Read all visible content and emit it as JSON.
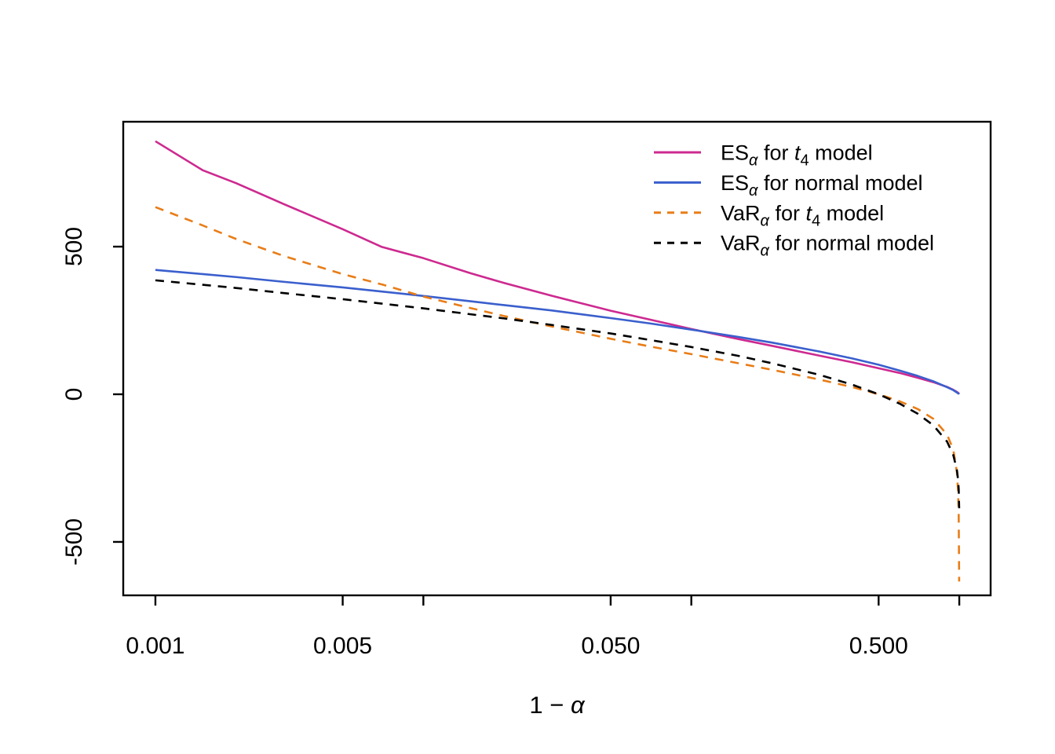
{
  "figure": {
    "background": "#ffffff"
  },
  "chart_data": {
    "type": "line",
    "title": "",
    "xlabel": "1 − α",
    "xlabel_parts": {
      "prefix": "1 − ",
      "alpha": "α"
    },
    "x_axis": {
      "scale": "log10",
      "log10_range": [
        -3.12,
        0.117
      ],
      "ticks": [
        {
          "value": 0.001,
          "label": "0.001"
        },
        {
          "value": 0.005,
          "label": "0.005"
        },
        {
          "value": 0.01,
          "label": ""
        },
        {
          "value": 0.05,
          "label": "0.050"
        },
        {
          "value": 0.1,
          "label": ""
        },
        {
          "value": 0.5,
          "label": "0.500"
        },
        {
          "value": 1.0,
          "label": ""
        }
      ]
    },
    "y_axis": {
      "range": [
        -681,
        923
      ],
      "ticks": [
        {
          "value": 500,
          "label": "500"
        },
        {
          "value": 0,
          "label": "0"
        },
        {
          "value": -500,
          "label": "-500"
        }
      ]
    },
    "legend_position": "topright",
    "series": [
      {
        "name": "ES-t4",
        "legend": "ES_α for t_4 model",
        "measure": "ES",
        "sub": "α",
        "mid": " for ",
        "model": "t",
        "model_sub": "4",
        "tail": " model",
        "color": "#CD2990",
        "dashed": false,
        "points": [
          [
            0.001,
            857
          ],
          [
            0.0015,
            759
          ],
          [
            0.002,
            715
          ],
          [
            0.003,
            645
          ],
          [
            0.005,
            559
          ],
          [
            0.007,
            499
          ],
          [
            0.01,
            461
          ],
          [
            0.015,
            410
          ],
          [
            0.02,
            377
          ],
          [
            0.03,
            334
          ],
          [
            0.05,
            283
          ],
          [
            0.07,
            253
          ],
          [
            0.1,
            221
          ],
          [
            0.15,
            187
          ],
          [
            0.2,
            164
          ],
          [
            0.3,
            131
          ],
          [
            0.4,
            108
          ],
          [
            0.5,
            88
          ],
          [
            0.6,
            72
          ],
          [
            0.7,
            56
          ],
          [
            0.8,
            41
          ],
          [
            0.9,
            25
          ],
          [
            0.95,
            15
          ],
          [
            0.98,
            8
          ],
          [
            0.99,
            5
          ],
          [
            0.995,
            3
          ],
          [
            0.999,
            1
          ]
        ]
      },
      {
        "name": "ES-normal",
        "legend": "ES_α for normal model",
        "measure": "ES",
        "sub": "α",
        "mid": " for ",
        "model": "normal",
        "model_sub": "",
        "tail": " model",
        "color": "#3A5FCD",
        "dashed": false,
        "points": [
          [
            0.001,
            421
          ],
          [
            0.0015,
            407
          ],
          [
            0.002,
            397
          ],
          [
            0.003,
            381
          ],
          [
            0.005,
            362
          ],
          [
            0.007,
            348
          ],
          [
            0.01,
            333
          ],
          [
            0.015,
            315
          ],
          [
            0.02,
            302
          ],
          [
            0.03,
            284
          ],
          [
            0.05,
            258
          ],
          [
            0.07,
            240
          ],
          [
            0.1,
            219
          ],
          [
            0.15,
            194
          ],
          [
            0.2,
            175
          ],
          [
            0.3,
            145
          ],
          [
            0.4,
            121
          ],
          [
            0.5,
            100
          ],
          [
            0.6,
            80
          ],
          [
            0.7,
            62
          ],
          [
            0.8,
            44
          ],
          [
            0.9,
            24
          ],
          [
            0.95,
            14
          ],
          [
            0.98,
            6
          ],
          [
            0.99,
            3
          ],
          [
            0.995,
            2
          ],
          [
            0.999,
            0
          ]
        ]
      },
      {
        "name": "VaR-t4",
        "legend": "VaR_α for t_4 model",
        "measure": "VaR",
        "sub": "α",
        "mid": " for ",
        "model": "t",
        "model_sub": "4",
        "tail": " model",
        "color": "#E87D18",
        "dashed": true,
        "points": [
          [
            0.001,
            634
          ],
          [
            0.0015,
            572
          ],
          [
            0.002,
            526
          ],
          [
            0.003,
            469
          ],
          [
            0.005,
            407
          ],
          [
            0.007,
            372
          ],
          [
            0.01,
            331
          ],
          [
            0.015,
            292
          ],
          [
            0.02,
            265
          ],
          [
            0.03,
            230
          ],
          [
            0.05,
            188
          ],
          [
            0.07,
            162
          ],
          [
            0.1,
            136
          ],
          [
            0.15,
            105
          ],
          [
            0.2,
            83
          ],
          [
            0.3,
            50
          ],
          [
            0.4,
            24
          ],
          [
            0.5,
            0
          ],
          [
            0.6,
            -24
          ],
          [
            0.7,
            -50
          ],
          [
            0.8,
            -83
          ],
          [
            0.9,
            -136
          ],
          [
            0.95,
            -188
          ],
          [
            0.98,
            -265
          ],
          [
            0.99,
            -331
          ],
          [
            0.995,
            -407
          ],
          [
            0.999,
            -634
          ]
        ]
      },
      {
        "name": "VaR-normal",
        "legend": "VaR_α for normal model",
        "measure": "VaR",
        "sub": "α",
        "mid": " for ",
        "model": "normal",
        "model_sub": "",
        "tail": " model",
        "color": "#000000",
        "dashed": true,
        "points": [
          [
            0.001,
            386
          ],
          [
            0.0015,
            371
          ],
          [
            0.002,
            360
          ],
          [
            0.003,
            343
          ],
          [
            0.005,
            322
          ],
          [
            0.007,
            307
          ],
          [
            0.01,
            291
          ],
          [
            0.015,
            271
          ],
          [
            0.02,
            257
          ],
          [
            0.03,
            235
          ],
          [
            0.05,
            206
          ],
          [
            0.07,
            184
          ],
          [
            0.1,
            160
          ],
          [
            0.15,
            130
          ],
          [
            0.2,
            105
          ],
          [
            0.3,
            66
          ],
          [
            0.4,
            32
          ],
          [
            0.5,
            0
          ],
          [
            0.6,
            -32
          ],
          [
            0.7,
            -66
          ],
          [
            0.8,
            -105
          ],
          [
            0.9,
            -160
          ],
          [
            0.95,
            -206
          ],
          [
            0.98,
            -257
          ],
          [
            0.99,
            -291
          ],
          [
            0.995,
            -322
          ],
          [
            0.999,
            -386
          ]
        ]
      }
    ]
  }
}
